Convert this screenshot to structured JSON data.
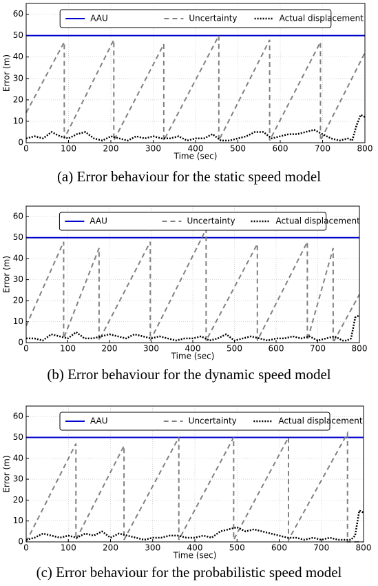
{
  "chart_data": [
    {
      "type": "line",
      "caption": "(a) Error behaviour for the static speed model",
      "xlabel": "Time (sec)",
      "ylabel": "Error (m)",
      "xlim": [
        0,
        800
      ],
      "ylim": [
        0,
        65
      ],
      "xticks": [
        0,
        100,
        200,
        300,
        400,
        500,
        600,
        700,
        800
      ],
      "yticks": [
        0,
        10,
        20,
        30,
        40,
        50,
        60
      ],
      "grid": true,
      "legend": "upper center",
      "series": [
        {
          "name": "AAU",
          "color": "#0000cc",
          "dash": "solid",
          "x": [
            0,
            800
          ],
          "values": [
            50,
            50
          ]
        },
        {
          "name": "Uncertainty",
          "color": "#808080",
          "dash": "dashed",
          "x": [
            0,
            90,
            90,
            207,
            207,
            325,
            325,
            455,
            455,
            575,
            575,
            695,
            695,
            800
          ],
          "values": [
            14,
            47,
            2,
            48,
            1,
            46,
            1,
            50,
            1,
            48,
            1,
            47,
            1,
            42
          ]
        },
        {
          "name": "Actual displacement",
          "color": "#000000",
          "dash": "dotted",
          "x": [
            0,
            20,
            40,
            60,
            80,
            100,
            120,
            140,
            160,
            180,
            200,
            220,
            240,
            260,
            280,
            300,
            320,
            340,
            360,
            380,
            400,
            420,
            440,
            460,
            480,
            500,
            520,
            540,
            560,
            580,
            600,
            620,
            640,
            660,
            680,
            700,
            720,
            740,
            760,
            770,
            780,
            790,
            800
          ],
          "values": [
            2,
            3,
            2,
            5,
            3,
            2,
            4,
            5,
            2,
            1,
            3,
            2,
            1,
            3,
            2,
            3,
            2,
            2,
            3,
            1,
            2,
            2,
            4,
            1,
            1,
            2,
            3,
            5,
            5,
            2,
            3,
            4,
            4,
            5,
            6,
            4,
            2,
            1,
            2,
            1,
            8,
            13,
            12
          ]
        }
      ]
    },
    {
      "type": "line",
      "caption": "(b) Error behaviour for the dynamic speed model",
      "xlabel": "Time (sec)",
      "ylabel": "Error (m)",
      "xlim": [
        0,
        800
      ],
      "ylim": [
        0,
        65
      ],
      "xticks": [
        0,
        100,
        200,
        300,
        400,
        500,
        600,
        700,
        800
      ],
      "yticks": [
        0,
        10,
        20,
        30,
        40,
        50,
        60
      ],
      "grid": true,
      "legend": "upper center",
      "series": [
        {
          "name": "AAU",
          "color": "#0000cc",
          "dash": "solid",
          "x": [
            0,
            800
          ],
          "values": [
            50,
            50
          ]
        },
        {
          "name": "Uncertainty",
          "color": "#808080",
          "dash": "dashed",
          "x": [
            0,
            90,
            90,
            175,
            175,
            298,
            298,
            432,
            432,
            555,
            555,
            675,
            675,
            737,
            737,
            800
          ],
          "values": [
            8,
            48,
            2,
            45,
            1,
            48,
            1,
            54,
            1,
            47,
            1,
            48,
            1,
            45,
            0,
            23
          ]
        },
        {
          "name": "Actual displacement",
          "color": "#000000",
          "dash": "dotted",
          "x": [
            0,
            20,
            40,
            60,
            80,
            100,
            120,
            140,
            160,
            180,
            200,
            220,
            240,
            260,
            280,
            300,
            320,
            340,
            360,
            380,
            400,
            420,
            440,
            460,
            480,
            500,
            520,
            540,
            560,
            580,
            600,
            620,
            640,
            660,
            680,
            700,
            720,
            740,
            760,
            770,
            780,
            790,
            800
          ],
          "values": [
            2,
            2,
            1,
            4,
            3,
            2,
            5,
            2,
            2,
            3,
            4,
            3,
            2,
            4,
            3,
            2,
            3,
            2,
            1,
            2,
            2,
            3,
            1,
            2,
            4,
            1,
            2,
            3,
            2,
            1,
            2,
            2,
            3,
            2,
            3,
            1,
            2,
            3,
            1,
            1,
            2,
            12,
            13
          ]
        }
      ]
    },
    {
      "type": "line",
      "caption": "(c) Error behaviour for the probabilistic speed model",
      "xlabel": "Time (sec)",
      "ylabel": "Error (m)",
      "xlim": [
        0,
        800
      ],
      "ylim": [
        0,
        65
      ],
      "xticks": [
        0,
        100,
        200,
        300,
        400,
        500,
        600,
        700,
        800
      ],
      "yticks": [
        0,
        10,
        20,
        30,
        40,
        50,
        60
      ],
      "grid": true,
      "legend": "upper center",
      "series": [
        {
          "name": "AAU",
          "color": "#0000cc",
          "dash": "solid",
          "x": [
            0,
            800
          ],
          "values": [
            50,
            50
          ]
        },
        {
          "name": "Uncertainty",
          "color": "#808080",
          "dash": "dashed",
          "x": [
            0,
            118,
            118,
            232,
            232,
            362,
            362,
            492,
            492,
            622,
            622,
            762,
            762,
            800
          ],
          "values": [
            0,
            47,
            1,
            46,
            1,
            50,
            1,
            50,
            1,
            50,
            1,
            52,
            0,
            0
          ]
        },
        {
          "name": "Actual displacement",
          "color": "#000000",
          "dash": "dotted",
          "x": [
            0,
            20,
            40,
            60,
            80,
            100,
            120,
            140,
            160,
            180,
            200,
            220,
            240,
            260,
            280,
            300,
            320,
            340,
            360,
            380,
            400,
            420,
            440,
            460,
            480,
            500,
            520,
            540,
            560,
            580,
            600,
            620,
            640,
            660,
            680,
            700,
            720,
            740,
            760,
            770,
            780,
            790,
            800
          ],
          "values": [
            1,
            2,
            4,
            3,
            2,
            3,
            2,
            4,
            3,
            5,
            2,
            4,
            3,
            2,
            1,
            2,
            2,
            3,
            3,
            2,
            2,
            3,
            2,
            5,
            6,
            7,
            5,
            6,
            5,
            4,
            3,
            2,
            2,
            1,
            2,
            1,
            2,
            1,
            1,
            1,
            3,
            15,
            14
          ]
        }
      ]
    }
  ]
}
